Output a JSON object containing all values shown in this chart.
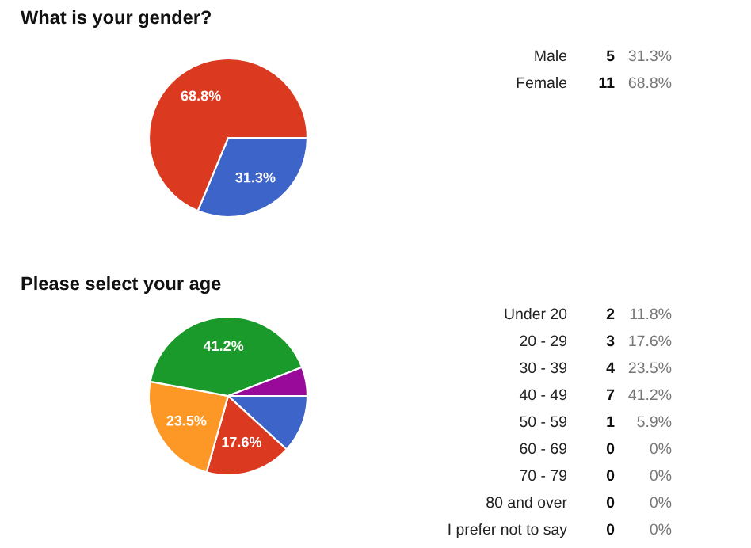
{
  "chart_data": [
    {
      "type": "pie",
      "title": "What is your gender?",
      "values": [
        31.3,
        68.8
      ],
      "colors": [
        "#3d64c8",
        "#dc3a20"
      ],
      "value_labels": [
        "31.3%",
        "68.8%"
      ]
    },
    {
      "type": "other",
      "categories": [
        "Male",
        "Female"
      ],
      "data_labels": true,
      "values": [
        5,
        11
      ],
      "annotations": [
        "31.3%",
        "68.8%"
      ]
    },
    {
      "type": "pie",
      "title": "Please select your age",
      "values": [
        11.8,
        17.6,
        23.5,
        41.2,
        5.9,
        0,
        0,
        0,
        0
      ],
      "colors": [
        "#3d64c8",
        "#dc3a20",
        "#fd9827",
        "#1a9a2a",
        "#9a0a9a",
        "#0099c6",
        "#dd4477",
        "#66aa00",
        "#b82e2e"
      ],
      "value_labels": [
        null,
        "17.6%",
        "23.5%",
        "41.2%",
        null,
        null,
        null,
        null,
        null
      ]
    },
    {
      "type": "other",
      "categories": [
        "Under 20",
        "20 - 29",
        "30 - 39",
        "40 - 49",
        "50 - 59",
        "60 - 69",
        "70 - 79",
        "80 and over",
        "I prefer not to say"
      ],
      "data_labels": true,
      "values": [
        2,
        3,
        4,
        7,
        1,
        0,
        0,
        0,
        0
      ],
      "annotations": [
        "11.8%",
        "17.6%",
        "23.5%",
        "41.2%",
        "5.9%",
        "0%",
        "0%",
        "0%",
        "0%"
      ]
    }
  ]
}
